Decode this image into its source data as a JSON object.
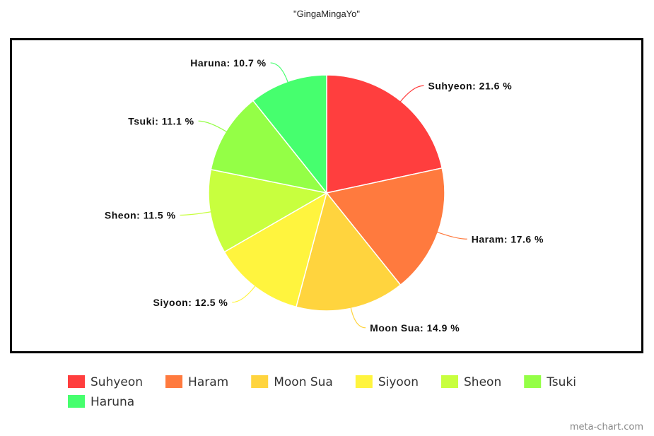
{
  "chart_data": {
    "type": "pie",
    "title": "\"GingaMingaYo\"",
    "categories": [
      "Suhyeon",
      "Haram",
      "Moon Sua",
      "Siyoon",
      "Sheon",
      "Tsuki",
      "Haruna"
    ],
    "values": [
      21.6,
      17.6,
      14.9,
      12.5,
      11.5,
      11.1,
      10.7
    ],
    "value_labels": [
      "Suhyeon: 21.6 %",
      "Haram: 17.6 %",
      "Moon Sua: 14.9 %",
      "Siyoon: 12.5 %",
      "Sheon: 11.5 %",
      "Tsuki: 11.1 %",
      "Haruna: 10.7 %"
    ],
    "colors": [
      "#ff3e3e",
      "#ff7a3e",
      "#ffd43e",
      "#fff43e",
      "#c8ff3e",
      "#94ff46",
      "#46ff6e"
    ],
    "legend": "bottom",
    "watermark": "meta-chart.com"
  }
}
